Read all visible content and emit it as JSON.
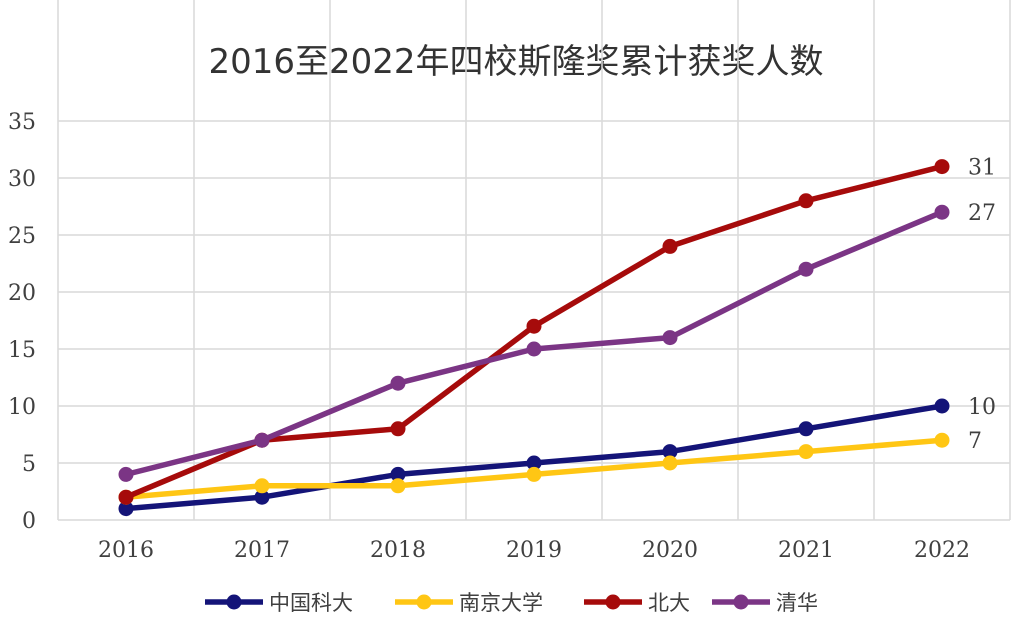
{
  "chart_data": {
    "type": "line",
    "title": "2016至2022年四校斯隆奖累计获奖人数",
    "xlabel": "",
    "ylabel": "",
    "categories": [
      "2016",
      "2017",
      "2018",
      "2019",
      "2020",
      "2021",
      "2022"
    ],
    "ylim": [
      0,
      35
    ],
    "yticks": [
      0,
      5,
      10,
      15,
      20,
      25,
      30,
      35
    ],
    "grid": true,
    "legend_position": "bottom",
    "series": [
      {
        "name": "中国科大",
        "color": "#141478",
        "values": [
          1,
          2,
          4,
          5,
          6,
          8,
          10
        ],
        "end_label": "10"
      },
      {
        "name": "南京大学",
        "color": "#FFC614",
        "values": [
          2,
          3,
          3,
          4,
          5,
          6,
          7
        ],
        "end_label": "7"
      },
      {
        "name": "北大",
        "color": "#A60B0B",
        "values": [
          2,
          7,
          8,
          17,
          24,
          28,
          31
        ],
        "end_label": "31"
      },
      {
        "name": "清华",
        "color": "#7B3585",
        "values": [
          4,
          7,
          12,
          15,
          16,
          22,
          27
        ],
        "end_label": "27"
      }
    ]
  }
}
